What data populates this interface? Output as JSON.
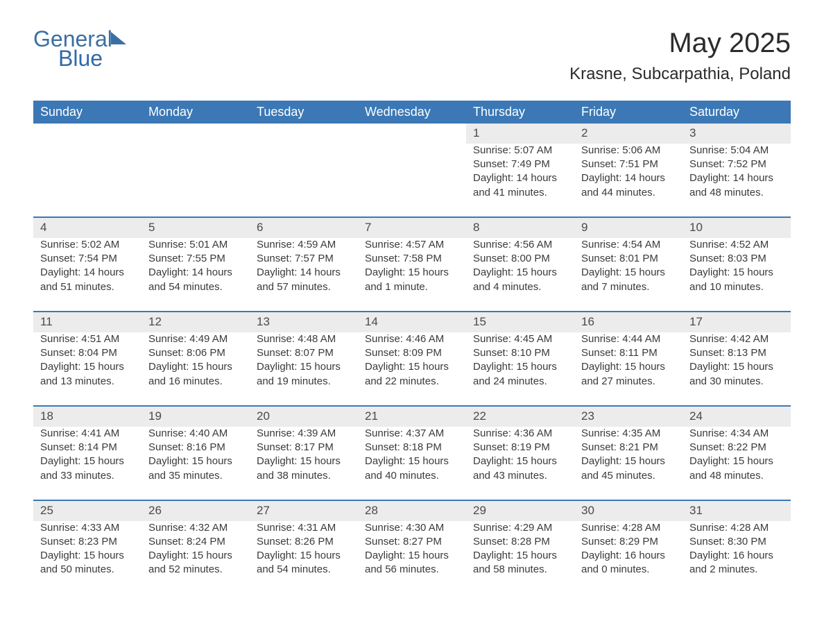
{
  "brand": {
    "part1": "General",
    "part2": "Blue"
  },
  "title": "May 2025",
  "location": "Krasne, Subcarpathia, Poland",
  "colors": {
    "header_bg": "#3b78b5",
    "header_text": "#ffffff",
    "daynum_bg": "#ececec",
    "row_divider": "#3b78b5",
    "body_text": "#3a3a3a",
    "background": "#ffffff",
    "logo_color": "#3b6fa3"
  },
  "typography": {
    "title_fontsize": 40,
    "location_fontsize": 24,
    "header_fontsize": 18,
    "cell_fontsize": 15,
    "daynum_fontsize": 17
  },
  "day_headers": [
    "Sunday",
    "Monday",
    "Tuesday",
    "Wednesday",
    "Thursday",
    "Friday",
    "Saturday"
  ],
  "labels": {
    "sunrise": "Sunrise: ",
    "sunset": "Sunset: ",
    "daylight": "Daylight: "
  },
  "weeks": [
    [
      null,
      null,
      null,
      null,
      {
        "n": "1",
        "sunrise": "5:07 AM",
        "sunset": "7:49 PM",
        "daylight": "14 hours and 41 minutes."
      },
      {
        "n": "2",
        "sunrise": "5:06 AM",
        "sunset": "7:51 PM",
        "daylight": "14 hours and 44 minutes."
      },
      {
        "n": "3",
        "sunrise": "5:04 AM",
        "sunset": "7:52 PM",
        "daylight": "14 hours and 48 minutes."
      }
    ],
    [
      {
        "n": "4",
        "sunrise": "5:02 AM",
        "sunset": "7:54 PM",
        "daylight": "14 hours and 51 minutes."
      },
      {
        "n": "5",
        "sunrise": "5:01 AM",
        "sunset": "7:55 PM",
        "daylight": "14 hours and 54 minutes."
      },
      {
        "n": "6",
        "sunrise": "4:59 AM",
        "sunset": "7:57 PM",
        "daylight": "14 hours and 57 minutes."
      },
      {
        "n": "7",
        "sunrise": "4:57 AM",
        "sunset": "7:58 PM",
        "daylight": "15 hours and 1 minute."
      },
      {
        "n": "8",
        "sunrise": "4:56 AM",
        "sunset": "8:00 PM",
        "daylight": "15 hours and 4 minutes."
      },
      {
        "n": "9",
        "sunrise": "4:54 AM",
        "sunset": "8:01 PM",
        "daylight": "15 hours and 7 minutes."
      },
      {
        "n": "10",
        "sunrise": "4:52 AM",
        "sunset": "8:03 PM",
        "daylight": "15 hours and 10 minutes."
      }
    ],
    [
      {
        "n": "11",
        "sunrise": "4:51 AM",
        "sunset": "8:04 PM",
        "daylight": "15 hours and 13 minutes."
      },
      {
        "n": "12",
        "sunrise": "4:49 AM",
        "sunset": "8:06 PM",
        "daylight": "15 hours and 16 minutes."
      },
      {
        "n": "13",
        "sunrise": "4:48 AM",
        "sunset": "8:07 PM",
        "daylight": "15 hours and 19 minutes."
      },
      {
        "n": "14",
        "sunrise": "4:46 AM",
        "sunset": "8:09 PM",
        "daylight": "15 hours and 22 minutes."
      },
      {
        "n": "15",
        "sunrise": "4:45 AM",
        "sunset": "8:10 PM",
        "daylight": "15 hours and 24 minutes."
      },
      {
        "n": "16",
        "sunrise": "4:44 AM",
        "sunset": "8:11 PM",
        "daylight": "15 hours and 27 minutes."
      },
      {
        "n": "17",
        "sunrise": "4:42 AM",
        "sunset": "8:13 PM",
        "daylight": "15 hours and 30 minutes."
      }
    ],
    [
      {
        "n": "18",
        "sunrise": "4:41 AM",
        "sunset": "8:14 PM",
        "daylight": "15 hours and 33 minutes."
      },
      {
        "n": "19",
        "sunrise": "4:40 AM",
        "sunset": "8:16 PM",
        "daylight": "15 hours and 35 minutes."
      },
      {
        "n": "20",
        "sunrise": "4:39 AM",
        "sunset": "8:17 PM",
        "daylight": "15 hours and 38 minutes."
      },
      {
        "n": "21",
        "sunrise": "4:37 AM",
        "sunset": "8:18 PM",
        "daylight": "15 hours and 40 minutes."
      },
      {
        "n": "22",
        "sunrise": "4:36 AM",
        "sunset": "8:19 PM",
        "daylight": "15 hours and 43 minutes."
      },
      {
        "n": "23",
        "sunrise": "4:35 AM",
        "sunset": "8:21 PM",
        "daylight": "15 hours and 45 minutes."
      },
      {
        "n": "24",
        "sunrise": "4:34 AM",
        "sunset": "8:22 PM",
        "daylight": "15 hours and 48 minutes."
      }
    ],
    [
      {
        "n": "25",
        "sunrise": "4:33 AM",
        "sunset": "8:23 PM",
        "daylight": "15 hours and 50 minutes."
      },
      {
        "n": "26",
        "sunrise": "4:32 AM",
        "sunset": "8:24 PM",
        "daylight": "15 hours and 52 minutes."
      },
      {
        "n": "27",
        "sunrise": "4:31 AM",
        "sunset": "8:26 PM",
        "daylight": "15 hours and 54 minutes."
      },
      {
        "n": "28",
        "sunrise": "4:30 AM",
        "sunset": "8:27 PM",
        "daylight": "15 hours and 56 minutes."
      },
      {
        "n": "29",
        "sunrise": "4:29 AM",
        "sunset": "8:28 PM",
        "daylight": "15 hours and 58 minutes."
      },
      {
        "n": "30",
        "sunrise": "4:28 AM",
        "sunset": "8:29 PM",
        "daylight": "16 hours and 0 minutes."
      },
      {
        "n": "31",
        "sunrise": "4:28 AM",
        "sunset": "8:30 PM",
        "daylight": "16 hours and 2 minutes."
      }
    ]
  ]
}
